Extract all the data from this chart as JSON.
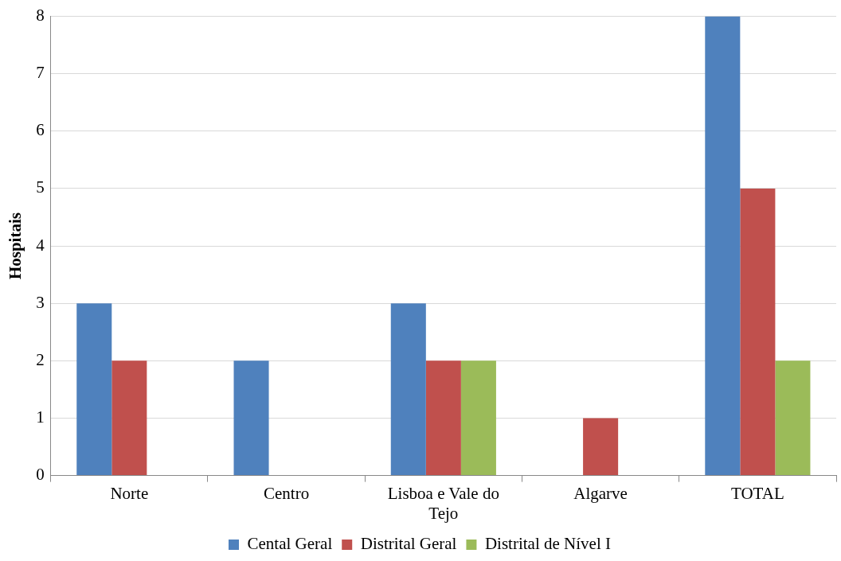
{
  "chart_data": {
    "type": "bar",
    "ylabel": "Hospitais",
    "categories": [
      "Norte",
      "Centro",
      "Lisboa e Vale do Tejo",
      "Algarve",
      "TOTAL"
    ],
    "series": [
      {
        "name": "Cental Geral",
        "color": "#4f81bd",
        "values": [
          3,
          2,
          3,
          0,
          8
        ]
      },
      {
        "name": "Distrital Geral",
        "color": "#c0504d",
        "values": [
          2,
          0,
          2,
          1,
          5
        ]
      },
      {
        "name": "Distrital de Nível I",
        "color": "#9bbb59",
        "values": [
          0,
          0,
          2,
          0,
          2
        ]
      }
    ],
    "ylim": [
      0,
      8
    ],
    "yticks": [
      0,
      1,
      2,
      3,
      4,
      5,
      6,
      7,
      8
    ],
    "grid": "y",
    "legend": "bottom"
  }
}
